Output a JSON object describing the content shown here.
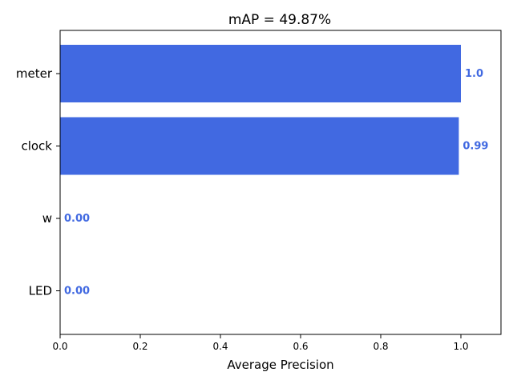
{
  "chart_data": {
    "type": "bar",
    "orientation": "horizontal",
    "title": "mAP = 49.87%",
    "xlabel": "Average Precision",
    "ylabel": "",
    "categories": [
      "meter",
      "clock",
      "w",
      "LED"
    ],
    "values": [
      1.0,
      0.9948,
      0.0,
      0.0
    ],
    "data_labels": [
      "1.0",
      "0.99",
      "0.00",
      "0.00"
    ],
    "xlim": [
      0.0,
      1.1
    ],
    "xticks": [
      0.0,
      0.2,
      0.4,
      0.6,
      0.8,
      1.0
    ],
    "xtick_labels": [
      "0.0",
      "0.2",
      "0.4",
      "0.6",
      "0.8",
      "1.0"
    ],
    "bar_color": "#4169e1",
    "grid": false
  }
}
